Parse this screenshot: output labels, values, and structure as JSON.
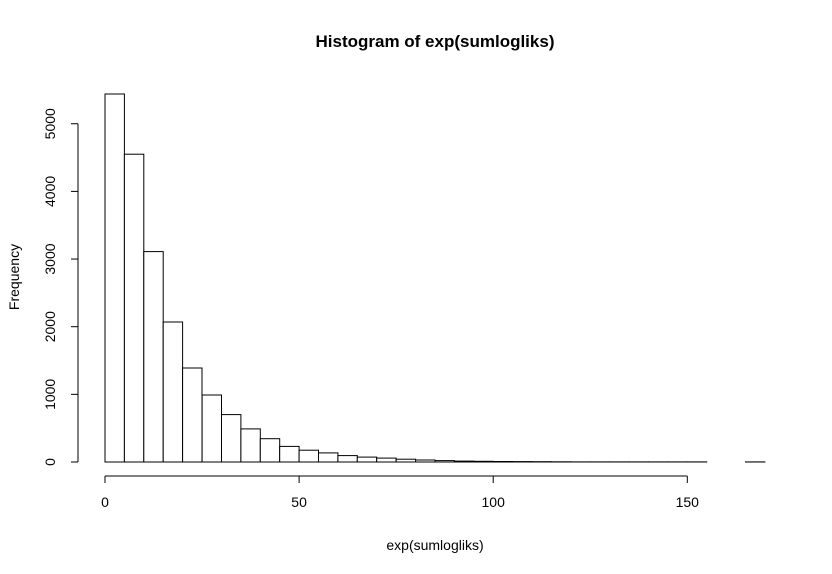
{
  "chart_data": {
    "type": "bar",
    "title": "Histogram of exp(sumlogliks)",
    "xlabel": "exp(sumlogliks)",
    "ylabel": "Frequency",
    "bin_width": 5,
    "x_start": 0,
    "bins": [
      [
        0,
        5,
        5440
      ],
      [
        5,
        10,
        4550
      ],
      [
        10,
        15,
        3110
      ],
      [
        15,
        20,
        2070
      ],
      [
        20,
        25,
        1390
      ],
      [
        25,
        30,
        990
      ],
      [
        30,
        35,
        700
      ],
      [
        35,
        40,
        490
      ],
      [
        40,
        45,
        345
      ],
      [
        45,
        50,
        230
      ],
      [
        50,
        55,
        175
      ],
      [
        55,
        60,
        135
      ],
      [
        60,
        65,
        95
      ],
      [
        65,
        70,
        72
      ],
      [
        70,
        75,
        58
      ],
      [
        75,
        80,
        42
      ],
      [
        80,
        85,
        30
      ],
      [
        85,
        90,
        20
      ],
      [
        90,
        95,
        14
      ],
      [
        95,
        100,
        10
      ],
      [
        100,
        105,
        8
      ],
      [
        105,
        110,
        6
      ],
      [
        110,
        115,
        4
      ],
      [
        115,
        120,
        3
      ],
      [
        120,
        125,
        2
      ],
      [
        125,
        130,
        2
      ],
      [
        130,
        135,
        1
      ],
      [
        135,
        140,
        1
      ],
      [
        140,
        145,
        1
      ],
      [
        145,
        150,
        1
      ],
      [
        150,
        155,
        1
      ],
      [
        155,
        160,
        0
      ],
      [
        160,
        165,
        0
      ],
      [
        165,
        170,
        1
      ]
    ],
    "xticks": [
      0,
      50,
      100,
      150
    ],
    "xtick_labels": [
      "0",
      "50",
      "100",
      "150"
    ],
    "yticks": [
      0,
      1000,
      2000,
      3000,
      4000,
      5000
    ],
    "ytick_labels": [
      "0",
      "1000",
      "2000",
      "3000",
      "4000",
      "5000"
    ],
    "xlim": [
      0,
      170
    ],
    "ylim": [
      0,
      5440
    ],
    "grid": false
  }
}
